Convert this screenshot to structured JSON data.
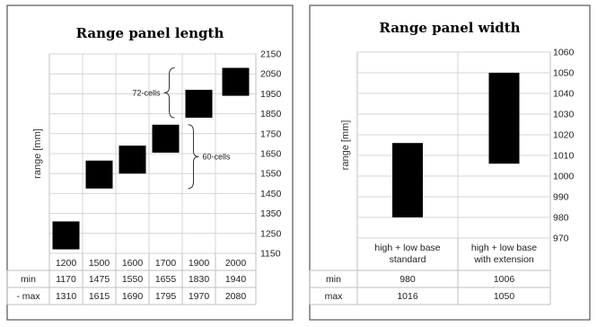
{
  "chart_data": [
    {
      "type": "bar",
      "style": "floating-range",
      "title": "Range panel length",
      "ylabel": "range  [mm]",
      "ylim": [
        1150,
        2150
      ],
      "yticks": [
        1150,
        1250,
        1350,
        1450,
        1550,
        1650,
        1750,
        1850,
        1950,
        2050,
        2150
      ],
      "categories": [
        "1200",
        "1500",
        "1600",
        "1700",
        "1900",
        "2000"
      ],
      "min": [
        1170,
        1475,
        1550,
        1655,
        1830,
        1940
      ],
      "max": [
        1310,
        1615,
        1690,
        1795,
        1970,
        2080
      ],
      "row_labels": {
        "min": "min",
        "max": "- max"
      },
      "annotations": [
        {
          "label": "72-cells",
          "categories": [
            4,
            5
          ]
        },
        {
          "label": "60-cells",
          "categories": [
            1,
            2,
            3
          ]
        }
      ],
      "grid": true
    },
    {
      "type": "bar",
      "style": "floating-range",
      "title": "Range panel width",
      "ylabel": "range  [mm]",
      "ylim": [
        970,
        1060
      ],
      "yticks": [
        970,
        980,
        990,
        1000,
        1010,
        1020,
        1030,
        1040,
        1050,
        1060
      ],
      "categories": [
        [
          "high + low base",
          "standard"
        ],
        [
          "high + low base",
          "with extension"
        ]
      ],
      "min": [
        980,
        1006
      ],
      "max": [
        1016,
        1050
      ],
      "row_labels": {
        "min": "min",
        "max": "max"
      },
      "grid": true
    }
  ]
}
